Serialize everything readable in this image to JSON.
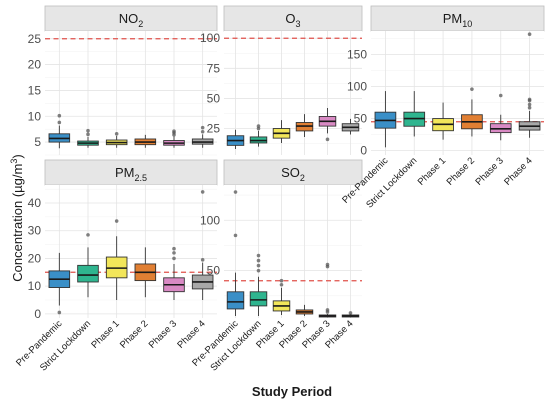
{
  "chart_data": {
    "type": "boxplot",
    "xlabel": "Study Period",
    "ylabel": "Concentration (µg/m³)",
    "ylabel_parts": {
      "main": "Concentration (µg/m",
      "sup": "3",
      "end": ")"
    },
    "categories": [
      "Pre-Pandemic",
      "Strict Lockdown",
      "Phase 1",
      "Phase 2",
      "Phase 3",
      "Phase 4"
    ],
    "colors": [
      "#3a8fc7",
      "#2fb58f",
      "#f2e65a",
      "#e17f33",
      "#d98ac4",
      "#a8a8a8"
    ],
    "panels": [
      {
        "name": "NO2",
        "label_main": "NO",
        "label_sub": "2",
        "ylim": [
          2.5,
          26.5
        ],
        "yticks": [
          5,
          10,
          15,
          20,
          25
        ],
        "threshold": 25,
        "boxes": [
          {
            "q1": 5.0,
            "median": 5.7,
            "q3": 6.6,
            "lo": 3.8,
            "hi": 8.2,
            "outliers": [
              8.8,
              10.1
            ]
          },
          {
            "q1": 4.4,
            "median": 4.8,
            "q3": 5.2,
            "lo": 3.9,
            "hi": 6.0,
            "outliers": [
              6.5,
              7.2
            ]
          },
          {
            "q1": 4.5,
            "median": 4.9,
            "q3": 5.4,
            "lo": 3.9,
            "hi": 6.2,
            "outliers": [
              6.6
            ]
          },
          {
            "q1": 4.5,
            "median": 5.0,
            "q3": 5.6,
            "lo": 3.9,
            "hi": 6.4,
            "outliers": []
          },
          {
            "q1": 4.4,
            "median": 4.8,
            "q3": 5.3,
            "lo": 3.9,
            "hi": 6.1,
            "outliers": [
              6.4,
              6.8,
              7.1
            ]
          },
          {
            "q1": 4.6,
            "median": 5.0,
            "q3": 5.6,
            "lo": 3.9,
            "hi": 6.5,
            "outliers": [
              7.0,
              7.8
            ]
          }
        ]
      },
      {
        "name": "O3",
        "label_main": "O",
        "label_sub": "3",
        "ylim": [
          3,
          106
        ],
        "yticks": [
          25,
          50,
          75,
          100
        ],
        "threshold": 100,
        "boxes": [
          {
            "q1": 11,
            "median": 15,
            "q3": 19,
            "lo": 8,
            "hi": 24,
            "outliers": []
          },
          {
            "q1": 13,
            "median": 15,
            "q3": 18,
            "lo": 10,
            "hi": 23,
            "outliers": [
              25,
              27
            ]
          },
          {
            "q1": 17,
            "median": 21,
            "q3": 25,
            "lo": 13,
            "hi": 32,
            "outliers": []
          },
          {
            "q1": 23,
            "median": 27,
            "q3": 30,
            "lo": 18,
            "hi": 37,
            "outliers": []
          },
          {
            "q1": 27,
            "median": 31,
            "q3": 35,
            "lo": 21,
            "hi": 42,
            "outliers": [
              16
            ]
          },
          {
            "q1": 23,
            "median": 26,
            "q3": 29,
            "lo": 20,
            "hi": 33,
            "outliers": []
          }
        ]
      },
      {
        "name": "PM10",
        "label_main": "PM",
        "label_sub": "10",
        "ylim": [
          -7,
          187
        ],
        "yticks": [
          0,
          50,
          100,
          150
        ],
        "threshold": 45,
        "boxes": [
          {
            "q1": 35,
            "median": 47,
            "q3": 60,
            "lo": 5,
            "hi": 93,
            "outliers": []
          },
          {
            "q1": 38,
            "median": 50,
            "q3": 60,
            "lo": 22,
            "hi": 93,
            "outliers": []
          },
          {
            "q1": 31,
            "median": 41,
            "q3": 50,
            "lo": 17,
            "hi": 75,
            "outliers": []
          },
          {
            "q1": 34,
            "median": 45,
            "q3": 56,
            "lo": 22,
            "hi": 80,
            "outliers": [
              96
            ]
          },
          {
            "q1": 28,
            "median": 34,
            "q3": 42,
            "lo": 16,
            "hi": 56,
            "outliers": [
              86
            ]
          },
          {
            "q1": 32,
            "median": 38,
            "q3": 45,
            "lo": 20,
            "hi": 62,
            "outliers": [
              67,
              72,
              78,
              80,
              182
            ]
          }
        ]
      },
      {
        "name": "PM2.5",
        "label_main": "PM",
        "label_sub": "2.5",
        "ylim": [
          -1.5,
          46.5
        ],
        "yticks": [
          0,
          10,
          20,
          30,
          40
        ],
        "threshold": 15,
        "boxes": [
          {
            "q1": 9.5,
            "median": 12.5,
            "q3": 15.5,
            "lo": 3,
            "hi": 22,
            "outliers": [
              0.5
            ]
          },
          {
            "q1": 11.5,
            "median": 14,
            "q3": 17.5,
            "lo": 6,
            "hi": 24,
            "outliers": [
              28.5
            ]
          },
          {
            "q1": 13,
            "median": 16.5,
            "q3": 20.5,
            "lo": 5,
            "hi": 28,
            "outliers": [
              33.5
            ]
          },
          {
            "q1": 12,
            "median": 15,
            "q3": 18,
            "lo": 6,
            "hi": 24,
            "outliers": []
          },
          {
            "q1": 8,
            "median": 10.5,
            "q3": 13,
            "lo": 5,
            "hi": 18,
            "outliers": [
              20,
              22,
              23.5
            ]
          },
          {
            "q1": 9,
            "median": 11.5,
            "q3": 14,
            "lo": 5,
            "hi": 18.5,
            "outliers": [
              19.5,
              44
            ]
          }
        ]
      },
      {
        "name": "SO2",
        "label_main": "SO",
        "label_sub": "2",
        "ylim": [
          3,
          135
        ],
        "yticks": [
          50,
          100
        ],
        "threshold": 40,
        "boxes": [
          {
            "q1": 12,
            "median": 19,
            "q3": 29,
            "lo": 5,
            "hi": 48,
            "outliers": [
              85,
              128
            ]
          },
          {
            "q1": 15,
            "median": 21,
            "q3": 29,
            "lo": 5,
            "hi": 44,
            "outliers": [
              50,
              55,
              60,
              65
            ]
          },
          {
            "q1": 10,
            "median": 15,
            "q3": 20,
            "lo": 6,
            "hi": 33,
            "outliers": [
              36,
              40
            ]
          },
          {
            "q1": 7,
            "median": 9,
            "q3": 11,
            "lo": 5,
            "hi": 16,
            "outliers": []
          },
          {
            "q1": 4,
            "median": 5,
            "q3": 6,
            "lo": 3.5,
            "hi": 7,
            "outliers": [
              9,
              11,
              54,
              56
            ]
          },
          {
            "q1": 4,
            "median": 5,
            "q3": 6,
            "lo": 3.5,
            "hi": 7,
            "outliers": [
              8
            ]
          }
        ]
      }
    ]
  }
}
